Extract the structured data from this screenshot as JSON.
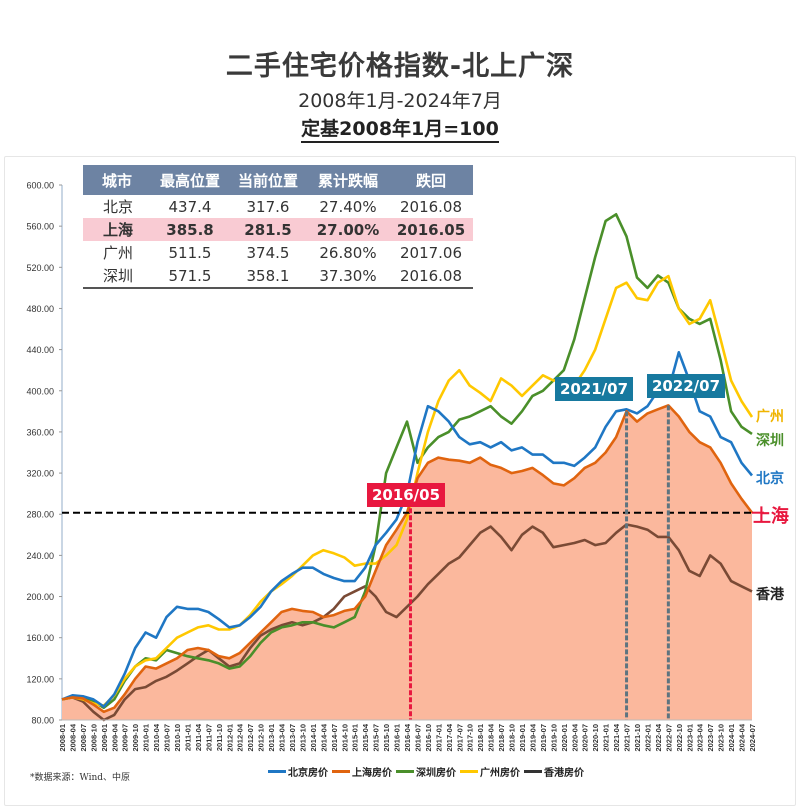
{
  "header": {
    "title": "二手住宅价格指数-北上广深",
    "subtitle": "2008年1月-2024年7月",
    "base_note": "定基2008年1月=100"
  },
  "table": {
    "headers": [
      "城市",
      "最高位置",
      "当前位置",
      "累计跌幅",
      "跌回"
    ],
    "rows": [
      {
        "city": "北京",
        "peak": "437.4",
        "current": "317.6",
        "drop": "27.40%",
        "back_to": "2016.08",
        "highlight": false
      },
      {
        "city": "上海",
        "peak": "385.8",
        "current": "281.5",
        "drop": "27.00%",
        "back_to": "2016.05",
        "highlight": true
      },
      {
        "city": "广州",
        "peak": "511.5",
        "current": "374.5",
        "drop": "26.80%",
        "back_to": "2017.06",
        "highlight": false
      },
      {
        "city": "深圳",
        "peak": "571.5",
        "current": "358.1",
        "drop": "37.30%",
        "back_to": "2016.08",
        "highlight": false
      }
    ]
  },
  "annotations": {
    "tag_2016": "2016/05",
    "tag_2021": "2021/07",
    "tag_2022": "2022/07"
  },
  "end_labels": {
    "guangzhou": "广州",
    "shenzhen": "深圳",
    "beijing": "北京",
    "shanghai": "上海",
    "hongkong": "香港"
  },
  "source": "*数据来源：Wind、中原",
  "colors": {
    "beijing": "#1f77c4",
    "shanghai": "#e0640f",
    "shanghai_fill": "#fbb89d",
    "shenzhen": "#4a8f2a",
    "guangzhou": "#ffc800",
    "hongkong": "#7a4a35",
    "tag_red": "#e8183f",
    "tag_blue": "#17799f",
    "table_header": "#6d83a3",
    "highlight_row": "#f9cbd3"
  },
  "chart_data": {
    "type": "line",
    "title": "二手住宅价格指数-北上广深",
    "subtitle": "2008年1月-2024年7月",
    "xlabel": "",
    "ylabel": "",
    "ylim": [
      80,
      600
    ],
    "yticks": [
      "80.00",
      "120.00",
      "160.00",
      "200.00",
      "240.00",
      "280.00",
      "320.00",
      "360.00",
      "400.00",
      "440.00",
      "480.00",
      "520.00",
      "560.00",
      "600.00"
    ],
    "x": [
      "2008-01",
      "2008-04",
      "2008-07",
      "2008-10",
      "2009-01",
      "2009-04",
      "2009-07",
      "2009-10",
      "2010-01",
      "2010-04",
      "2010-07",
      "2010-10",
      "2011-01",
      "2011-04",
      "2011-07",
      "2011-10",
      "2012-01",
      "2012-04",
      "2012-07",
      "2012-10",
      "2013-01",
      "2013-04",
      "2013-07",
      "2013-10",
      "2014-01",
      "2014-04",
      "2014-07",
      "2014-10",
      "2015-01",
      "2015-04",
      "2015-07",
      "2015-10",
      "2016-01",
      "2016-04",
      "2016-07",
      "2016-10",
      "2017-01",
      "2017-04",
      "2017-07",
      "2017-10",
      "2018-01",
      "2018-04",
      "2018-07",
      "2018-10",
      "2019-01",
      "2019-04",
      "2019-07",
      "2019-10",
      "2020-01",
      "2020-04",
      "2020-07",
      "2020-10",
      "2021-01",
      "2021-04",
      "2021-07",
      "2021-10",
      "2022-01",
      "2022-04",
      "2022-07",
      "2022-10",
      "2023-01",
      "2023-04",
      "2023-07",
      "2023-10",
      "2024-01",
      "2024-04",
      "2024-07"
    ],
    "reference_line": {
      "value": 281.5,
      "style": "dashed"
    },
    "markers": [
      {
        "x": "2016-05",
        "label": "2016/05"
      },
      {
        "x": "2021-07",
        "label": "2021/07"
      },
      {
        "x": "2022-07",
        "label": "2022/07"
      }
    ],
    "legend": [
      "北京房价",
      "上海房价",
      "深圳房价",
      "广州房价",
      "香港房价"
    ],
    "legend_position": "bottom",
    "series": [
      {
        "name": "北京房价",
        "key": "beijing",
        "values": [
          100,
          104,
          103,
          100,
          93,
          105,
          125,
          150,
          165,
          160,
          180,
          190,
          188,
          188,
          185,
          178,
          170,
          172,
          180,
          190,
          205,
          215,
          222,
          228,
          228,
          222,
          218,
          215,
          215,
          228,
          250,
          262,
          275,
          300,
          350,
          385,
          380,
          370,
          355,
          348,
          350,
          345,
          350,
          342,
          345,
          338,
          338,
          330,
          330,
          327,
          335,
          345,
          365,
          380,
          382,
          378,
          385,
          400,
          400,
          437.4,
          410,
          380,
          375,
          355,
          350,
          330,
          317.6
        ]
      },
      {
        "name": "上海房价",
        "key": "shanghai",
        "values": [
          100,
          102,
          101,
          95,
          88,
          92,
          105,
          120,
          132,
          130,
          135,
          140,
          148,
          150,
          148,
          142,
          140,
          145,
          155,
          165,
          175,
          185,
          188,
          186,
          185,
          180,
          182,
          186,
          188,
          200,
          225,
          250,
          265,
          281.5,
          315,
          330,
          335,
          333,
          332,
          330,
          335,
          328,
          325,
          320,
          322,
          325,
          318,
          310,
          308,
          315,
          325,
          330,
          340,
          355,
          380,
          370,
          378,
          382,
          385.8,
          375,
          360,
          350,
          345,
          330,
          310,
          295,
          281.5
        ]
      },
      {
        "name": "深圳房价",
        "key": "shenzhen",
        "values": [
          100,
          102,
          101,
          98,
          92,
          100,
          118,
          132,
          140,
          138,
          148,
          145,
          142,
          140,
          138,
          135,
          130,
          132,
          142,
          155,
          165,
          170,
          172,
          175,
          175,
          172,
          170,
          175,
          180,
          205,
          250,
          320,
          345,
          370,
          330,
          345,
          355,
          360,
          372,
          375,
          380,
          385,
          375,
          368,
          380,
          395,
          400,
          410,
          420,
          450,
          490,
          530,
          565,
          571.5,
          550,
          510,
          500,
          512,
          505,
          480,
          470,
          465,
          470,
          430,
          380,
          365,
          358.1
        ]
      },
      {
        "name": "广州房价",
        "key": "guangzhou",
        "values": [
          100,
          102,
          100,
          96,
          94,
          104,
          120,
          132,
          138,
          140,
          150,
          160,
          165,
          170,
          172,
          168,
          168,
          172,
          182,
          195,
          205,
          212,
          220,
          230,
          240,
          245,
          242,
          238,
          230,
          232,
          232,
          240,
          250,
          275,
          320,
          360,
          390,
          410,
          420,
          405,
          398,
          390,
          412,
          405,
          395,
          405,
          415,
          410,
          410,
          405,
          420,
          440,
          470,
          500,
          505,
          490,
          488,
          505,
          511.5,
          480,
          465,
          470,
          488,
          450,
          410,
          390,
          374.5
        ]
      },
      {
        "name": "香港房价",
        "key": "hongkong",
        "values": [
          100,
          102,
          98,
          88,
          80,
          85,
          100,
          110,
          112,
          118,
          122,
          128,
          135,
          142,
          148,
          140,
          132,
          135,
          150,
          162,
          168,
          172,
          175,
          172,
          175,
          180,
          188,
          200,
          205,
          210,
          200,
          185,
          180,
          190,
          200,
          212,
          222,
          232,
          238,
          250,
          262,
          268,
          258,
          245,
          260,
          268,
          262,
          248,
          250,
          252,
          255,
          250,
          252,
          262,
          270,
          268,
          265,
          258,
          258,
          245,
          225,
          220,
          240,
          232,
          215,
          210,
          205
        ]
      }
    ]
  }
}
